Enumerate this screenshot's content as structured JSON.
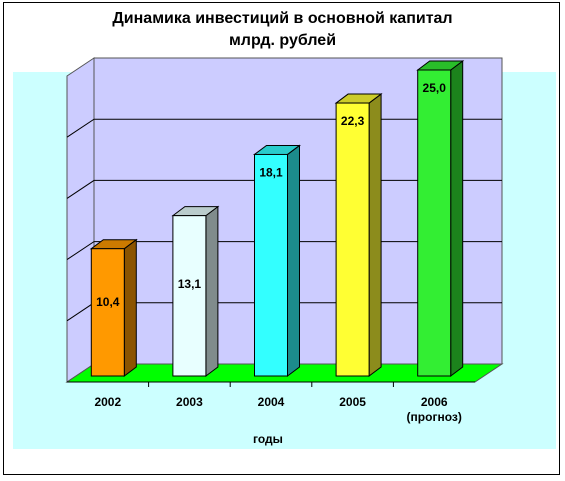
{
  "chart_data": {
    "type": "bar",
    "title_lines": [
      "Динамика инвестиций в основной капитал",
      "млрд. рублей"
    ],
    "xlabel": "годы",
    "ylabel": "",
    "categories": [
      "2002",
      "2003",
      "2004",
      "2005",
      "2006"
    ],
    "category_sublabels": [
      "",
      "",
      "",
      "",
      "(прогноз)"
    ],
    "values": [
      10.4,
      13.1,
      18.1,
      22.3,
      25.0
    ],
    "data_labels": [
      "10,4",
      "13,1",
      "18,1",
      "22,3",
      "25,0"
    ],
    "ylim": [
      0,
      25
    ],
    "grid": true,
    "three_d": true,
    "colors": {
      "bars": [
        "#FF9900",
        "#E8FFFF",
        "#33FFFF",
        "#FFFF33",
        "#33EE33"
      ],
      "plot_back_wall": "#CCCCFF",
      "plot_area": "#CCFFFF",
      "floor": "#00FF00"
    }
  }
}
